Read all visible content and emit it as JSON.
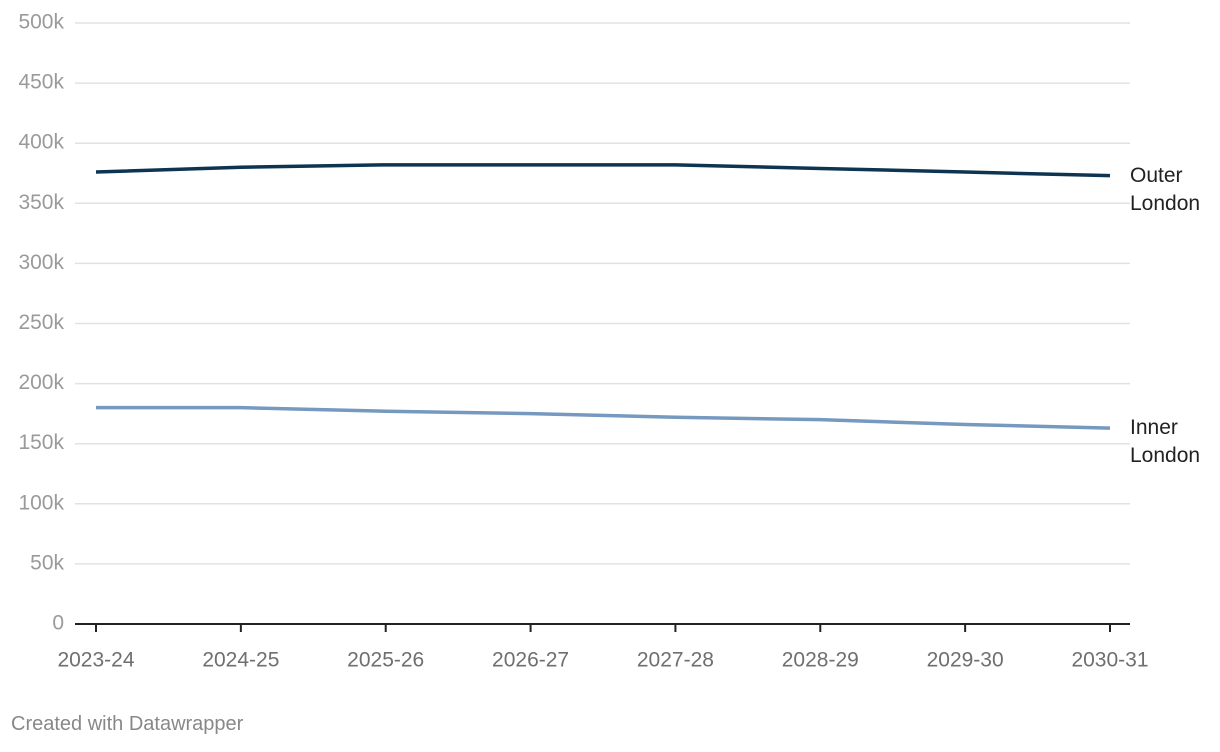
{
  "chart_data": {
    "type": "line",
    "categories": [
      "2023-24",
      "2024-25",
      "2025-26",
      "2026-27",
      "2027-28",
      "2028-29",
      "2029-30",
      "2030-31"
    ],
    "series": [
      {
        "name": "Outer London",
        "color": "#0d3552",
        "values": [
          376000,
          380000,
          382000,
          382000,
          382000,
          379000,
          376000,
          373000
        ]
      },
      {
        "name": "Inner London",
        "color": "#7599bf",
        "values": [
          180000,
          180000,
          177000,
          175000,
          172000,
          170000,
          166000,
          163000
        ]
      }
    ],
    "ylim": [
      0,
      500000
    ],
    "yticks": [
      0,
      {
        "value": 50000,
        "label": "50k"
      },
      {
        "value": 100000,
        "label": "100k"
      },
      {
        "value": 150000,
        "label": "150k"
      },
      {
        "value": 200000,
        "label": "200k"
      },
      {
        "value": 250000,
        "label": "250k"
      },
      {
        "value": 300000,
        "label": "300k"
      },
      {
        "value": 350000,
        "label": "350k"
      },
      {
        "value": 400000,
        "label": "400k"
      },
      {
        "value": 450000,
        "label": "450k"
      },
      {
        "value": 500000,
        "label": "500k"
      }
    ],
    "grid": true,
    "credit": "Created with Datawrapper"
  }
}
